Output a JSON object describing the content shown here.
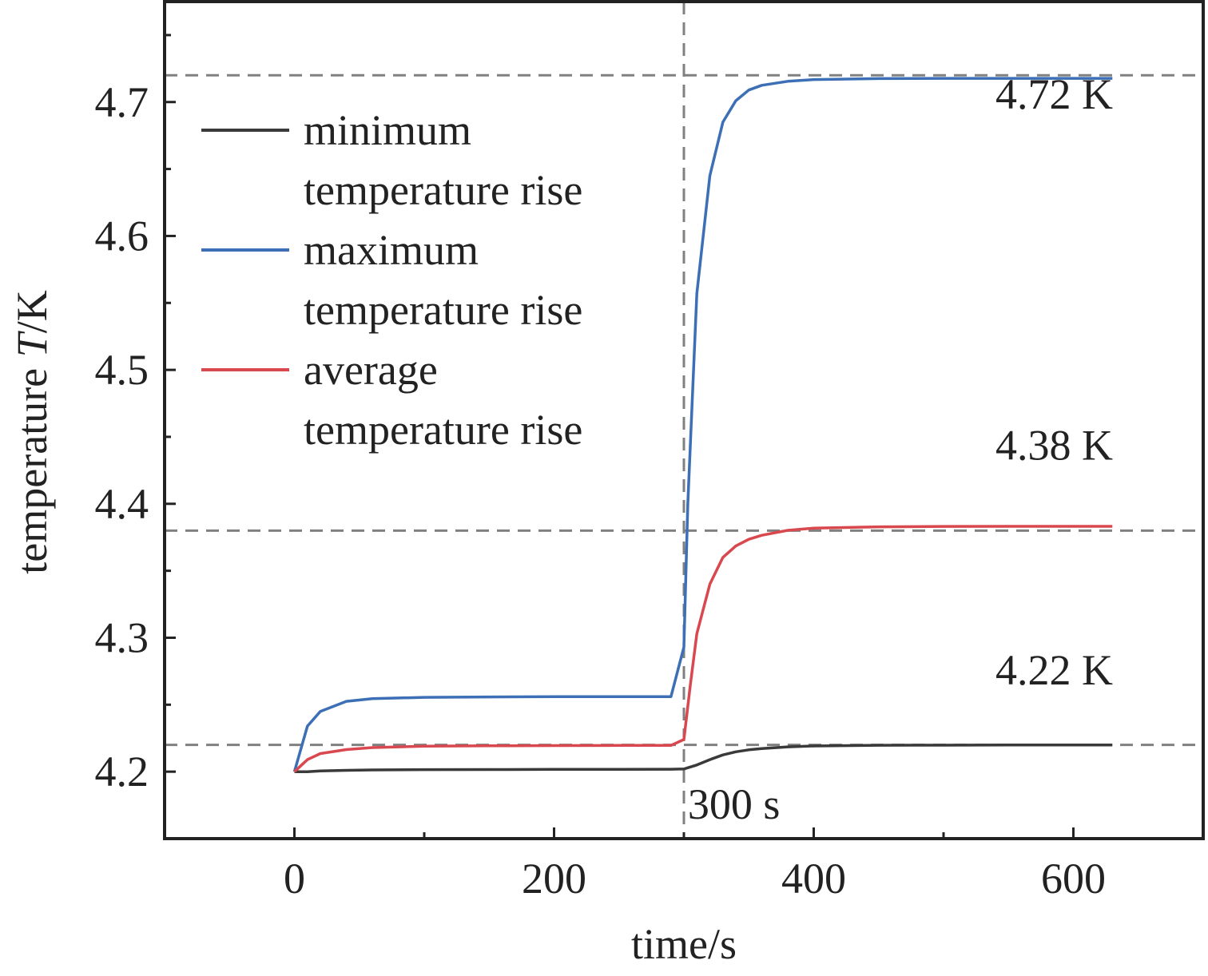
{
  "chart_data": {
    "type": "line",
    "title": "",
    "xlabel": "time/s",
    "ylabel_prefix": "temperature ",
    "ylabel_italic": "T",
    "ylabel_suffix": "/K",
    "xlim": [
      -100,
      700
    ],
    "ylim": [
      4.15,
      4.775
    ],
    "x_ticks": [
      0,
      200,
      400,
      600
    ],
    "x_minor_ticks": [
      100,
      300,
      500
    ],
    "y_ticks": [
      4.2,
      4.3,
      4.4,
      4.5,
      4.6,
      4.7
    ],
    "y_minor_ticks": [
      4.25,
      4.35,
      4.45,
      4.55,
      4.65,
      4.75
    ],
    "grid": false,
    "legend_position": "upper-left",
    "series": [
      {
        "name": "minimum temperature rise",
        "legend_lines": [
          "minimum",
          "temperature rise"
        ],
        "color": "#3a3a3a",
        "x": [
          0,
          10,
          20,
          40,
          60,
          100,
          150,
          200,
          250,
          290,
          300,
          310,
          320,
          330,
          340,
          350,
          360,
          380,
          400,
          450,
          500,
          550,
          630
        ],
        "y": [
          4.2,
          4.2,
          4.2005,
          4.201,
          4.2013,
          4.2015,
          4.2016,
          4.2017,
          4.2017,
          4.2018,
          4.202,
          4.205,
          4.209,
          4.2125,
          4.2148,
          4.2163,
          4.2173,
          4.2185,
          4.2192,
          4.2197,
          4.2198,
          4.2199,
          4.2199
        ]
      },
      {
        "name": "maximum temperature rise",
        "legend_lines": [
          "maximum",
          "temperature rise"
        ],
        "color": "#3d6fb6",
        "x": [
          0,
          10,
          20,
          40,
          60,
          100,
          150,
          200,
          250,
          290,
          300,
          303,
          310,
          320,
          330,
          340,
          350,
          360,
          380,
          400,
          450,
          500,
          550,
          630
        ],
        "y": [
          4.2,
          4.234,
          4.245,
          4.2525,
          4.2545,
          4.2555,
          4.2558,
          4.256,
          4.256,
          4.256,
          4.293,
          4.4,
          4.557,
          4.645,
          4.685,
          4.701,
          4.709,
          4.7125,
          4.7155,
          4.7168,
          4.7175,
          4.7177,
          4.7177,
          4.7177
        ]
      },
      {
        "name": "average temperature rise",
        "legend_lines": [
          "average",
          "temperature rise"
        ],
        "color": "#d9484f",
        "x": [
          0,
          10,
          20,
          40,
          60,
          100,
          150,
          200,
          250,
          290,
          300,
          305,
          310,
          320,
          330,
          340,
          350,
          360,
          380,
          400,
          450,
          500,
          550,
          630
        ],
        "y": [
          4.2,
          4.209,
          4.2135,
          4.2165,
          4.218,
          4.219,
          4.2193,
          4.2195,
          4.2196,
          4.2196,
          4.224,
          4.265,
          4.303,
          4.34,
          4.36,
          4.3685,
          4.3735,
          4.3765,
          4.3802,
          4.3818,
          4.3828,
          4.3831,
          4.3832,
          4.3832
        ]
      }
    ],
    "reference_lines": {
      "horizontal": [
        4.72,
        4.38,
        4.22
      ],
      "vertical": [
        300
      ]
    },
    "annotations": [
      {
        "text": "4.72 K",
        "x": 540,
        "y": 4.695
      },
      {
        "text": "4.38 K",
        "x": 540,
        "y": 4.433
      },
      {
        "text": "4.22 K",
        "x": 540,
        "y": 4.265
      },
      {
        "text": "300 s",
        "x": 303,
        "y": 4.165
      }
    ]
  }
}
